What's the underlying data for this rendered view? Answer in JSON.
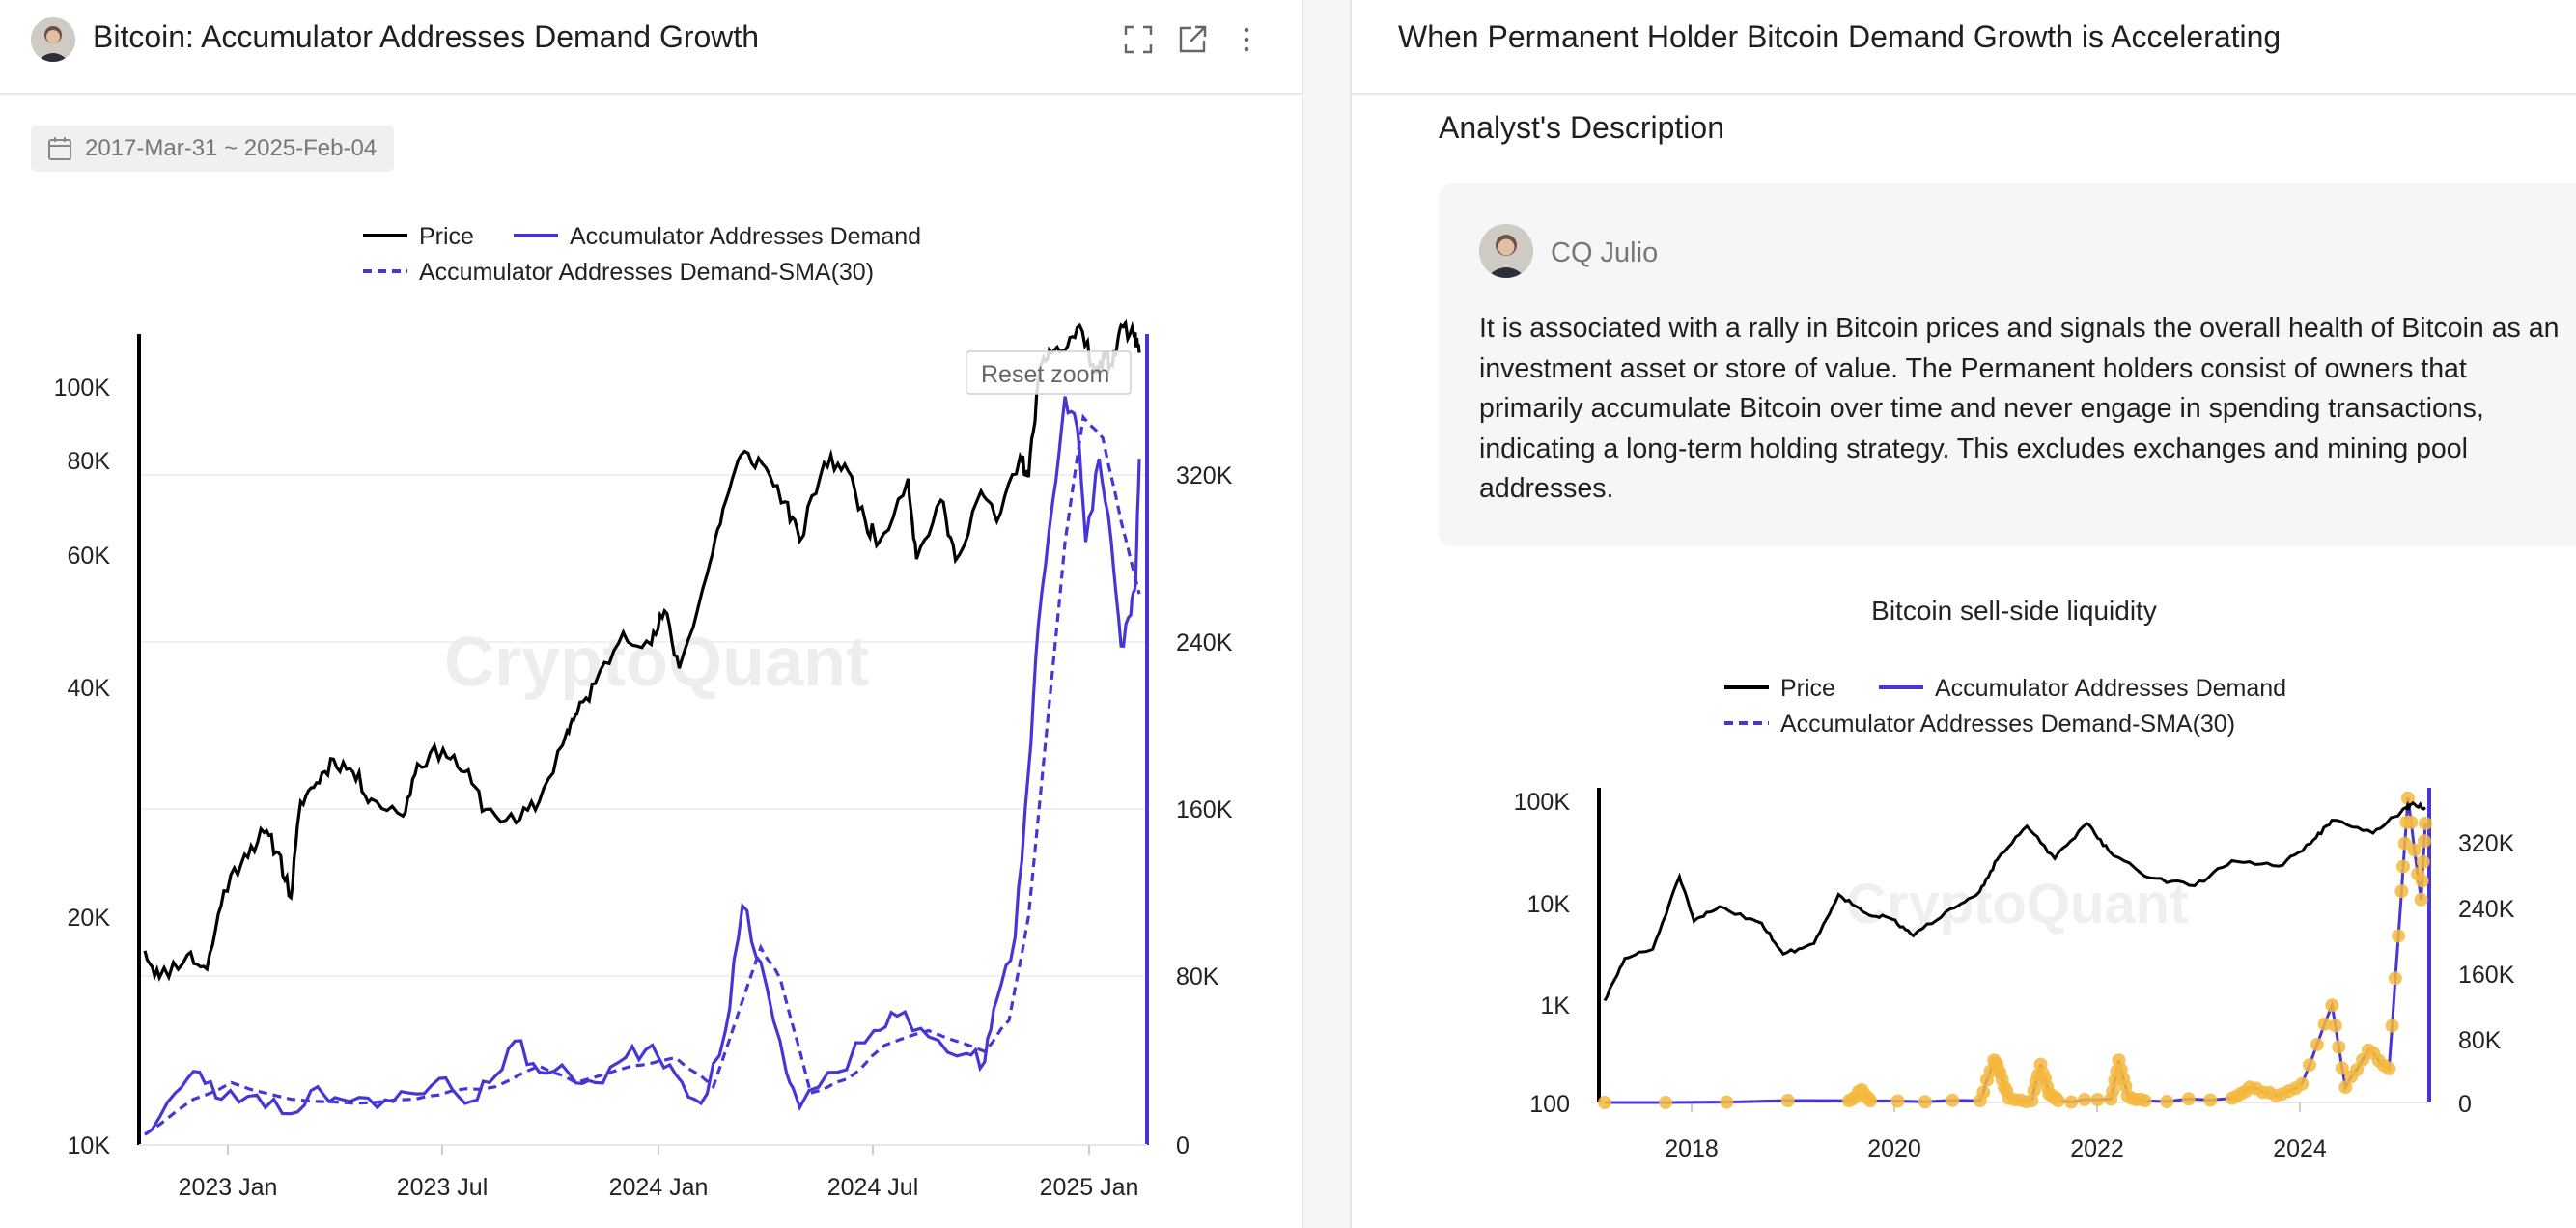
{
  "left_panel": {
    "title": "Bitcoin: Accumulator Addresses Demand Growth",
    "date_range": "2017-Mar-31 ~ 2025-Feb-04",
    "reset_zoom_label": "Reset zoom",
    "watermark": "CryptoQuant",
    "icons": [
      "expand-icon",
      "external-link-icon",
      "more-vertical-icon",
      "calendar-icon"
    ]
  },
  "right_panel": {
    "title": "When Permanent Holder Bitcoin Demand Growth is Accelerating",
    "description_heading": "Analyst's Description",
    "author": "CQ Julio",
    "description": "It is associated with a rally in Bitcoin prices and signals the overall health of Bitcoin as an investment asset or store of value. The Permanent holders consist of owners that primarily accumulate Bitcoin over time and never engage in spending transactions, indicating a long-term holding strategy. This excludes exchanges and mining pool addresses."
  },
  "colors": {
    "price": "#000000",
    "demand": "#4636d6",
    "sma": "#4636d6",
    "dots": "#f5b83d",
    "grid": "#ececec",
    "watermark": "#ececec"
  },
  "chart_data": [
    {
      "type": "line",
      "title": "",
      "legend": [
        "Price",
        "Accumulator Addresses Demand",
        "Accumulator Addresses Demand-SMA(30)"
      ],
      "legend_position": "top-center",
      "x_ticks": [
        "2023 Jan",
        "2023 Jul",
        "2024 Jan",
        "2024 Jul",
        "2025 Jan"
      ],
      "y_left": {
        "scale": "log",
        "ticks": [
          "10K",
          "20K",
          "40K",
          "60K",
          "80K",
          "100K"
        ],
        "range": [
          10000,
          110000
        ]
      },
      "y_right": {
        "ticks": [
          "0",
          "80K",
          "160K",
          "240K",
          "320K"
        ],
        "range": [
          0,
          390000
        ]
      },
      "x_range": [
        "2022-11-10",
        "2025-02-04"
      ],
      "series": [
        {
          "name": "Price",
          "axis": "left",
          "points": [
            [
              "2022-11-10",
              17500
            ],
            [
              "2022-11-22",
              16200
            ],
            [
              "2022-12-15",
              17300
            ],
            [
              "2022-12-31",
              16600
            ],
            [
              "2023-01-14",
              20800
            ],
            [
              "2023-01-31",
              23100
            ],
            [
              "2023-02-16",
              24600
            ],
            [
              "2023-02-28",
              23200
            ],
            [
              "2023-03-10",
              20400
            ],
            [
              "2023-03-18",
              26900
            ],
            [
              "2023-03-31",
              28400
            ],
            [
              "2023-04-14",
              30400
            ],
            [
              "2023-04-30",
              29300
            ],
            [
              "2023-05-15",
              27100
            ],
            [
              "2023-06-10",
              25800
            ],
            [
              "2023-06-22",
              30000
            ],
            [
              "2023-07-13",
              31300
            ],
            [
              "2023-07-31",
              29300
            ],
            [
              "2023-08-17",
              26300
            ],
            [
              "2023-09-11",
              25300
            ],
            [
              "2023-09-30",
              26900
            ],
            [
              "2023-10-23",
              33000
            ],
            [
              "2023-10-31",
              34600
            ],
            [
              "2023-11-15",
              37800
            ],
            [
              "2023-12-08",
              43800
            ],
            [
              "2023-12-31",
              42300
            ],
            [
              "2024-01-11",
              46600
            ],
            [
              "2024-01-23",
              39500
            ],
            [
              "2024-02-15",
              51800
            ],
            [
              "2024-02-28",
              62500
            ],
            [
              "2024-03-14",
              73100
            ],
            [
              "2024-03-31",
              71300
            ],
            [
              "2024-04-19",
              63800
            ],
            [
              "2024-05-01",
              57000
            ],
            [
              "2024-05-21",
              71400
            ],
            [
              "2024-06-07",
              71100
            ],
            [
              "2024-06-24",
              60300
            ],
            [
              "2024-07-05",
              56700
            ],
            [
              "2024-07-29",
              68200
            ],
            [
              "2024-08-05",
              54100
            ],
            [
              "2024-08-25",
              64100
            ],
            [
              "2024-09-06",
              53900
            ],
            [
              "2024-09-27",
              65800
            ],
            [
              "2024-10-10",
              60300
            ],
            [
              "2024-10-29",
              72700
            ],
            [
              "2024-11-05",
              68500
            ],
            [
              "2024-11-13",
              90500
            ],
            [
              "2024-11-22",
              98900
            ],
            [
              "2024-12-05",
              98800
            ],
            [
              "2024-12-17",
              106000
            ],
            [
              "2024-12-30",
              92300
            ],
            [
              "2025-01-07",
              96900
            ],
            [
              "2025-01-13",
              94500
            ],
            [
              "2025-01-20",
              106100
            ],
            [
              "2025-01-31",
              102400
            ],
            [
              "2025-02-04",
              98000
            ]
          ]
        },
        {
          "name": "Accumulator Addresses Demand",
          "axis": "right",
          "points": [
            [
              "2022-11-10",
              5000
            ],
            [
              "2022-12-05",
              25000
            ],
            [
              "2022-12-25",
              35000
            ],
            [
              "2023-01-12",
              22000
            ],
            [
              "2023-02-10",
              24000
            ],
            [
              "2023-03-10",
              15000
            ],
            [
              "2023-04-01",
              28000
            ],
            [
              "2023-04-20",
              22000
            ],
            [
              "2023-05-20",
              18000
            ],
            [
              "2023-06-15",
              25000
            ],
            [
              "2023-07-10",
              32000
            ],
            [
              "2023-07-31",
              20000
            ],
            [
              "2023-08-20",
              30000
            ],
            [
              "2023-09-10",
              50000
            ],
            [
              "2023-09-30",
              35000
            ],
            [
              "2023-10-25",
              34000
            ],
            [
              "2023-11-15",
              30000
            ],
            [
              "2023-12-10",
              42000
            ],
            [
              "2024-01-01",
              48000
            ],
            [
              "2024-01-20",
              34000
            ],
            [
              "2024-02-10",
              20000
            ],
            [
              "2024-03-01",
              55000
            ],
            [
              "2024-03-15",
              115000
            ],
            [
              "2024-03-30",
              88000
            ],
            [
              "2024-04-20",
              35000
            ],
            [
              "2024-05-01",
              18000
            ],
            [
              "2024-06-01",
              35000
            ],
            [
              "2024-07-01",
              55000
            ],
            [
              "2024-07-20",
              62000
            ],
            [
              "2024-08-15",
              52000
            ],
            [
              "2024-09-15",
              44000
            ],
            [
              "2024-09-30",
              40000
            ],
            [
              "2024-10-10",
              70000
            ],
            [
              "2024-10-25",
              100000
            ],
            [
              "2024-11-05",
              180000
            ],
            [
              "2024-11-13",
              250000
            ],
            [
              "2024-11-25",
              310000
            ],
            [
              "2024-12-05",
              360000
            ],
            [
              "2024-12-15",
              345000
            ],
            [
              "2024-12-22",
              290000
            ],
            [
              "2025-01-02",
              330000
            ],
            [
              "2025-01-12",
              290000
            ],
            [
              "2025-01-20",
              240000
            ],
            [
              "2025-01-28",
              255000
            ],
            [
              "2025-02-01",
              270000
            ],
            [
              "2025-02-04",
              330000
            ]
          ]
        },
        {
          "name": "Accumulator Addresses Demand-SMA(30)",
          "axis": "right",
          "points": [
            [
              "2022-11-10",
              5000
            ],
            [
              "2022-12-20",
              22000
            ],
            [
              "2023-01-20",
              30000
            ],
            [
              "2023-03-10",
              22000
            ],
            [
              "2023-05-01",
              20000
            ],
            [
              "2023-06-20",
              22000
            ],
            [
              "2023-07-20",
              26000
            ],
            [
              "2023-08-25",
              28000
            ],
            [
              "2023-09-30",
              38000
            ],
            [
              "2023-10-30",
              30000
            ],
            [
              "2023-12-15",
              38000
            ],
            [
              "2024-01-20",
              42000
            ],
            [
              "2024-02-20",
              28000
            ],
            [
              "2024-03-30",
              95000
            ],
            [
              "2024-04-15",
              80000
            ],
            [
              "2024-05-10",
              25000
            ],
            [
              "2024-06-10",
              32000
            ],
            [
              "2024-07-10",
              48000
            ],
            [
              "2024-08-15",
              55000
            ],
            [
              "2024-09-30",
              45000
            ],
            [
              "2024-10-20",
              60000
            ],
            [
              "2024-11-05",
              110000
            ],
            [
              "2024-11-20",
              200000
            ],
            [
              "2024-12-05",
              290000
            ],
            [
              "2024-12-20",
              350000
            ],
            [
              "2025-01-05",
              340000
            ],
            [
              "2025-01-20",
              300000
            ],
            [
              "2025-02-04",
              265000
            ]
          ]
        }
      ]
    },
    {
      "type": "line",
      "title": "Bitcoin sell-side liquidity",
      "legend": [
        "Price",
        "Accumulator Addresses Demand",
        "Accumulator Addresses Demand-SMA(30)"
      ],
      "legend_position": "top-center",
      "x_ticks": [
        "2018",
        "2020",
        "2022",
        "2024"
      ],
      "y_left": {
        "scale": "log",
        "ticks": [
          "100",
          "1K",
          "10K",
          "100K"
        ],
        "range": [
          100,
          130000
        ]
      },
      "y_right": {
        "ticks": [
          "0",
          "80K",
          "160K",
          "240K",
          "320K"
        ],
        "range": [
          0,
          370000
        ]
      },
      "x_range": [
        "2017-03-31",
        "2025-02-04"
      ],
      "series": [
        {
          "name": "Price",
          "axis": "left",
          "points": [
            [
              "2017-03-31",
              1080
            ],
            [
              "2017-06-10",
              2900
            ],
            [
              "2017-09-15",
              3600
            ],
            [
              "2017-12-17",
              19500
            ],
            [
              "2018-02-06",
              6900
            ],
            [
              "2018-05-05",
              9700
            ],
            [
              "2018-09-30",
              6600
            ],
            [
              "2018-12-15",
              3200
            ],
            [
              "2019-04-01",
              4100
            ],
            [
              "2019-06-26",
              12900
            ],
            [
              "2019-09-30",
              8300
            ],
            [
              "2019-12-31",
              7200
            ],
            [
              "2020-03-13",
              4900
            ],
            [
              "2020-07-20",
              9200
            ],
            [
              "2020-10-31",
              13800
            ],
            [
              "2020-12-31",
              29000
            ],
            [
              "2021-04-14",
              63500
            ],
            [
              "2021-07-20",
              29800
            ],
            [
              "2021-11-10",
              67500
            ],
            [
              "2022-01-24",
              36000
            ],
            [
              "2022-06-18",
              19000
            ],
            [
              "2022-11-21",
              15800
            ],
            [
              "2023-03-31",
              28400
            ],
            [
              "2023-09-11",
              25000
            ],
            [
              "2023-12-31",
              42300
            ],
            [
              "2024-03-14",
              73000
            ],
            [
              "2024-08-05",
              54000
            ],
            [
              "2024-11-13",
              90000
            ],
            [
              "2024-12-17",
              106000
            ],
            [
              "2025-02-04",
              98000
            ]
          ]
        },
        {
          "name": "Accumulator Addresses Demand",
          "axis": "right",
          "points": [
            [
              "2017-03-31",
              0
            ],
            [
              "2019-08-01",
              2000
            ],
            [
              "2019-09-15",
              15000
            ],
            [
              "2019-10-15",
              2000
            ],
            [
              "2020-11-01",
              2000
            ],
            [
              "2020-12-20",
              50000
            ],
            [
              "2021-01-10",
              35000
            ],
            [
              "2021-02-10",
              5000
            ],
            [
              "2021-05-01",
              2000
            ],
            [
              "2021-06-01",
              45000
            ],
            [
              "2021-07-01",
              10000
            ],
            [
              "2021-08-01",
              2000
            ],
            [
              "2022-02-01",
              4000
            ],
            [
              "2022-03-01",
              50000
            ],
            [
              "2022-04-01",
              8000
            ],
            [
              "2022-06-01",
              2000
            ],
            [
              "2023-04-01",
              5000
            ],
            [
              "2023-06-01",
              18000
            ],
            [
              "2023-09-01",
              8000
            ],
            [
              "2023-12-01",
              22000
            ],
            [
              "2024-03-15",
              115000
            ],
            [
              "2024-05-01",
              18000
            ],
            [
              "2024-07-20",
              62000
            ],
            [
              "2024-09-30",
              40000
            ],
            [
              "2024-11-13",
              250000
            ],
            [
              "2024-12-05",
              360000
            ],
            [
              "2025-01-20",
              240000
            ],
            [
              "2025-02-04",
              330000
            ]
          ]
        }
      ]
    }
  ]
}
